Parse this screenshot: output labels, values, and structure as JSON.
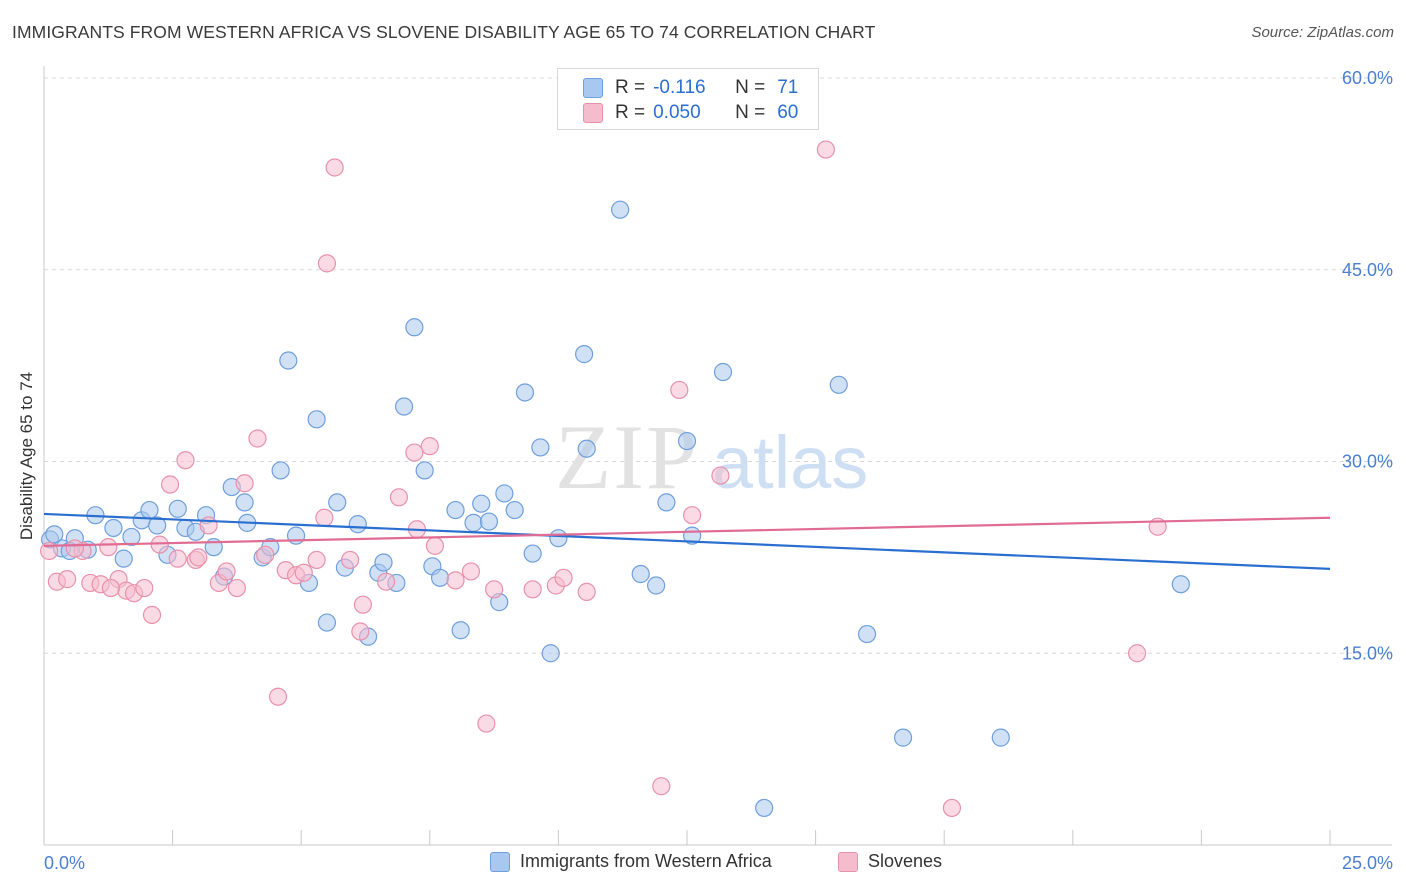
{
  "title": "IMMIGRANTS FROM WESTERN AFRICA VS SLOVENE DISABILITY AGE 65 TO 74 CORRELATION CHART",
  "source": "Source: ZipAtlas.com",
  "watermark": {
    "zip": "ZIP",
    "atlas": "atlas"
  },
  "colors": {
    "blue_fill": "#a9c8ef",
    "blue_stroke": "#6f9fdc",
    "blue_line": "#2a6fd0",
    "pink_fill": "#f5bccd",
    "pink_stroke": "#e891ab",
    "pink_line": "#e06c94",
    "tick_label": "#4a7fd0",
    "grid": "#d8d8d8"
  },
  "chart_data": {
    "type": "scatter",
    "title": "IMMIGRANTS FROM WESTERN AFRICA VS SLOVENE DISABILITY AGE 65 TO 74 CORRELATION CHART",
    "xlabel": "",
    "ylabel": "Disability Age 65 to 74",
    "xlim": [
      0,
      25
    ],
    "ylim": [
      0,
      60
    ],
    "x_tick_labels": [
      "0.0%",
      "25.0%"
    ],
    "y_ticks": [
      15,
      30,
      45,
      60
    ],
    "y_tick_labels": [
      "15.0%",
      "30.0%",
      "45.0%",
      "60.0%"
    ],
    "grid": true,
    "legend_position": "top-center",
    "stats": [
      {
        "r_label": "R =",
        "r_value": "-0.116",
        "n_label": "N =",
        "n_value": "71"
      },
      {
        "r_label": "R =",
        "r_value": "0.050",
        "n_label": "N =",
        "n_value": "60"
      }
    ],
    "series": [
      {
        "name": "Immigrants from Western Africa",
        "color": "blue",
        "trend": [
          [
            0,
            25.9
          ],
          [
            25,
            21.6
          ]
        ],
        "points": [
          [
            0.12,
            23.9
          ],
          [
            0.35,
            23.2
          ],
          [
            0.6,
            24.0
          ],
          [
            0.85,
            23.1
          ],
          [
            1.0,
            25.8
          ],
          [
            1.35,
            24.8
          ],
          [
            1.55,
            22.4
          ],
          [
            1.7,
            24.1
          ],
          [
            1.9,
            25.4
          ],
          [
            2.05,
            26.2
          ],
          [
            2.2,
            25.0
          ],
          [
            2.4,
            22.7
          ],
          [
            2.6,
            26.3
          ],
          [
            2.75,
            24.8
          ],
          [
            2.95,
            24.5
          ],
          [
            3.15,
            25.8
          ],
          [
            3.3,
            23.3
          ],
          [
            3.5,
            21.0
          ],
          [
            3.65,
            28.0
          ],
          [
            3.9,
            26.8
          ],
          [
            3.95,
            25.2
          ],
          [
            4.25,
            22.5
          ],
          [
            4.4,
            23.3
          ],
          [
            4.6,
            29.3
          ],
          [
            4.75,
            37.9
          ],
          [
            4.9,
            24.2
          ],
          [
            5.15,
            20.5
          ],
          [
            5.3,
            33.3
          ],
          [
            5.5,
            17.4
          ],
          [
            5.7,
            26.8
          ],
          [
            5.85,
            21.7
          ],
          [
            6.1,
            25.1
          ],
          [
            6.3,
            16.3
          ],
          [
            6.5,
            21.3
          ],
          [
            6.6,
            22.1
          ],
          [
            6.85,
            20.5
          ],
          [
            7.0,
            34.3
          ],
          [
            7.2,
            40.5
          ],
          [
            7.4,
            29.3
          ],
          [
            7.55,
            21.8
          ],
          [
            7.7,
            20.9
          ],
          [
            8.0,
            26.2
          ],
          [
            8.1,
            16.8
          ],
          [
            8.35,
            25.2
          ],
          [
            8.5,
            26.7
          ],
          [
            8.65,
            25.3
          ],
          [
            8.85,
            19.0
          ],
          [
            8.95,
            27.5
          ],
          [
            9.15,
            26.2
          ],
          [
            9.35,
            35.4
          ],
          [
            9.5,
            22.8
          ],
          [
            9.65,
            31.1
          ],
          [
            9.85,
            15.0
          ],
          [
            10.0,
            24.0
          ],
          [
            10.5,
            38.4
          ],
          [
            10.55,
            31.0
          ],
          [
            11.2,
            49.7
          ],
          [
            11.6,
            21.2
          ],
          [
            11.9,
            20.3
          ],
          [
            12.1,
            26.8
          ],
          [
            12.5,
            31.6
          ],
          [
            12.6,
            24.2
          ],
          [
            13.2,
            37.0
          ],
          [
            14.0,
            2.9
          ],
          [
            15.45,
            36.0
          ],
          [
            16.0,
            16.5
          ],
          [
            16.7,
            8.4
          ],
          [
            18.6,
            8.4
          ],
          [
            22.1,
            20.4
          ],
          [
            0.2,
            24.3
          ],
          [
            0.5,
            23.0
          ]
        ]
      },
      {
        "name": "Slovenes",
        "color": "pink",
        "trend": [
          [
            0,
            23.4
          ],
          [
            25,
            25.6
          ]
        ],
        "points": [
          [
            0.1,
            23.0
          ],
          [
            0.25,
            20.6
          ],
          [
            0.45,
            20.8
          ],
          [
            0.75,
            23.0
          ],
          [
            0.9,
            20.5
          ],
          [
            1.1,
            20.4
          ],
          [
            1.25,
            23.3
          ],
          [
            1.45,
            20.8
          ],
          [
            1.6,
            19.9
          ],
          [
            1.75,
            19.7
          ],
          [
            1.95,
            20.1
          ],
          [
            2.1,
            18.0
          ],
          [
            2.25,
            23.5
          ],
          [
            2.45,
            28.2
          ],
          [
            2.6,
            22.4
          ],
          [
            2.75,
            30.1
          ],
          [
            2.95,
            22.3
          ],
          [
            3.2,
            25.0
          ],
          [
            3.4,
            20.5
          ],
          [
            3.55,
            21.4
          ],
          [
            3.75,
            20.1
          ],
          [
            3.9,
            28.3
          ],
          [
            4.15,
            31.8
          ],
          [
            4.3,
            22.7
          ],
          [
            4.55,
            11.6
          ],
          [
            4.7,
            21.5
          ],
          [
            4.9,
            21.1
          ],
          [
            5.05,
            21.3
          ],
          [
            5.3,
            22.3
          ],
          [
            5.45,
            25.6
          ],
          [
            5.5,
            45.5
          ],
          [
            5.65,
            53.0
          ],
          [
            5.95,
            22.3
          ],
          [
            6.15,
            16.7
          ],
          [
            6.2,
            18.8
          ],
          [
            6.65,
            20.6
          ],
          [
            6.9,
            27.2
          ],
          [
            7.2,
            30.7
          ],
          [
            7.25,
            24.7
          ],
          [
            7.5,
            31.2
          ],
          [
            8.0,
            20.7
          ],
          [
            8.3,
            21.4
          ],
          [
            8.6,
            9.5
          ],
          [
            8.75,
            20.0
          ],
          [
            9.5,
            20.0
          ],
          [
            9.95,
            20.3
          ],
          [
            10.1,
            20.9
          ],
          [
            10.55,
            19.8
          ],
          [
            12.0,
            4.6
          ],
          [
            12.35,
            35.6
          ],
          [
            12.6,
            25.8
          ],
          [
            13.15,
            28.9
          ],
          [
            15.2,
            54.4
          ],
          [
            17.65,
            2.9
          ],
          [
            21.25,
            15.0
          ],
          [
            21.65,
            24.9
          ],
          [
            0.6,
            23.2
          ],
          [
            1.3,
            20.1
          ],
          [
            3.0,
            22.5
          ],
          [
            7.6,
            23.4
          ]
        ]
      }
    ]
  }
}
